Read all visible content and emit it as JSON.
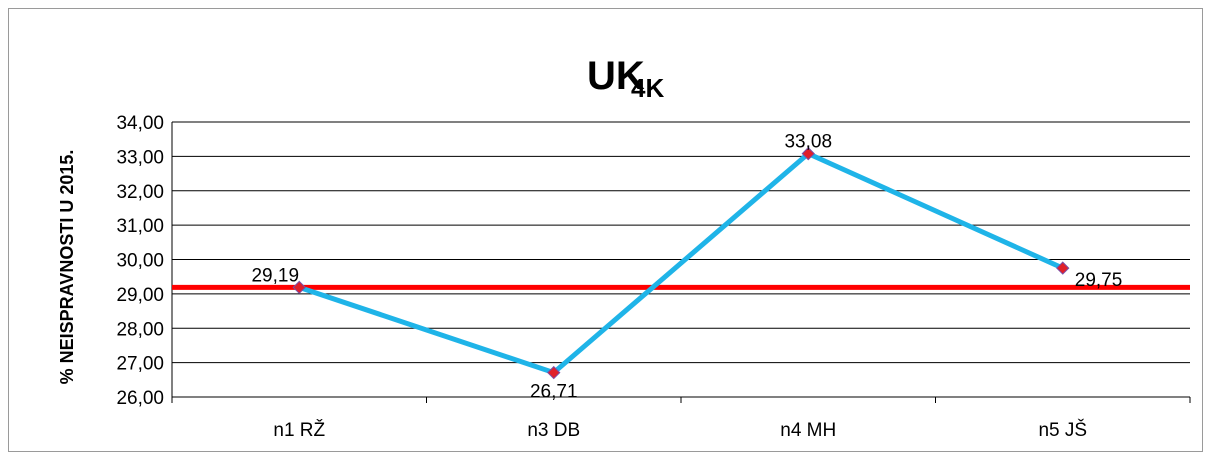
{
  "chart_data": {
    "type": "line",
    "title": "UK",
    "title_subscript": "4K",
    "ylabel": "% NEISPRAVNOSTI U 2015.",
    "xlabel": "",
    "categories": [
      "n1 RŽ",
      "n3 DB",
      "n4 MH",
      "n5 JŠ"
    ],
    "series": [
      {
        "values": [
          29.19,
          26.71,
          33.08,
          29.75
        ],
        "data_labels": [
          "29,19",
          "26,71",
          "33,08",
          "29,75"
        ],
        "color": "#1fb4e8",
        "marker_color": "#e0202a"
      }
    ],
    "reference_line": {
      "value": 29.19,
      "color": "#ff0000"
    },
    "ylim": [
      26,
      34
    ],
    "yticks": [
      "26,00",
      "27,00",
      "28,00",
      "29,00",
      "30,00",
      "31,00",
      "32,00",
      "33,00",
      "34,00"
    ],
    "grid": true,
    "legend": "none"
  }
}
